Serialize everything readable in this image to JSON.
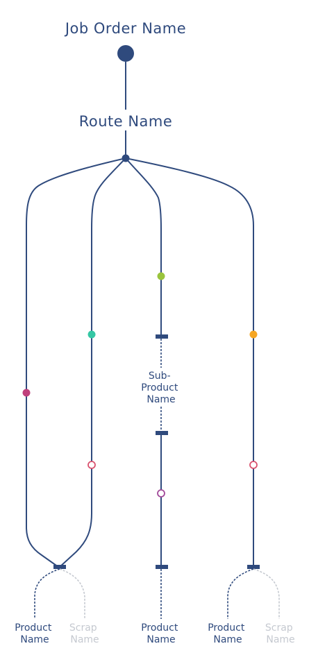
{
  "job": {
    "title": "Job Order Name"
  },
  "route": {
    "name": "Route Name"
  },
  "labels": {
    "sub_product_line1": "Sub-",
    "sub_product_line2": "Product",
    "sub_product_line3": "Name",
    "product_line1": "Product",
    "product_line2": "Name",
    "scrap_line1": "Scrap",
    "scrap_line2": "Name"
  },
  "colors": {
    "navy": "#2f4a7d",
    "pink": "#c0407c",
    "teal": "#35c7a4",
    "lime": "#9ac43d",
    "orange": "#f5a623",
    "hollow_pink": "#d9536f",
    "hollow_purple": "#a24a9a",
    "scrap_gray": "#c5c9d0"
  },
  "icons": {
    "job_node": "filled-circle",
    "route_node": "filled-dot",
    "operation_node": "colored-dot",
    "inspection_node": "hollow-circle",
    "output_node": "horizontal-bar"
  }
}
